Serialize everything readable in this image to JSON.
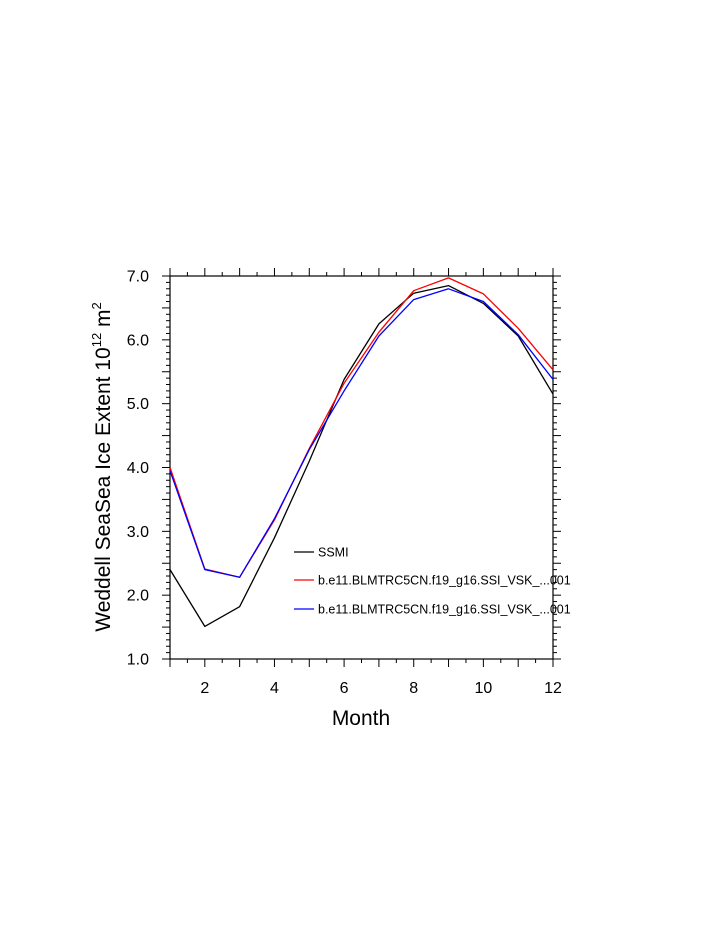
{
  "chart_data": {
    "type": "line",
    "title": "",
    "xlabel": "Month",
    "ylabel": {
      "prefix": "Weddell SeaSea Ice Extent 10",
      "superscript1": "12",
      "middle": " m",
      "superscript2": "2"
    },
    "xlim": [
      1,
      12
    ],
    "ylim": [
      1.0,
      7.0
    ],
    "xticks": [
      "2",
      "4",
      "6",
      "8",
      "10",
      "12"
    ],
    "yticks": [
      "1.0",
      "2.0",
      "3.0",
      "4.0",
      "5.0",
      "6.0",
      "7.0"
    ],
    "x": [
      1,
      2,
      3,
      4,
      5,
      6,
      7,
      8,
      9,
      10,
      11,
      12
    ],
    "series": [
      {
        "name": "SSMI",
        "color": "#000000",
        "values": [
          2.4,
          1.51,
          1.82,
          2.9,
          4.1,
          5.38,
          6.25,
          6.73,
          6.85,
          6.57,
          6.06,
          5.15
        ]
      },
      {
        "name": "b.e11.BLMTRC5CN.f19_g16.SSI_VSK_...001",
        "color": "#ff0000",
        "values": [
          4.0,
          2.41,
          2.28,
          3.18,
          4.3,
          5.32,
          6.12,
          6.77,
          6.97,
          6.72,
          6.18,
          5.53
        ]
      },
      {
        "name": "b.e11.BLMTRC5CN.f19_g16.SSI_VSK_...001",
        "color": "#0000ff",
        "values": [
          3.95,
          2.4,
          2.28,
          3.2,
          4.28,
          5.2,
          6.06,
          6.63,
          6.8,
          6.6,
          6.08,
          5.38
        ]
      }
    ],
    "legend_position": "lower-right",
    "grid": false
  }
}
